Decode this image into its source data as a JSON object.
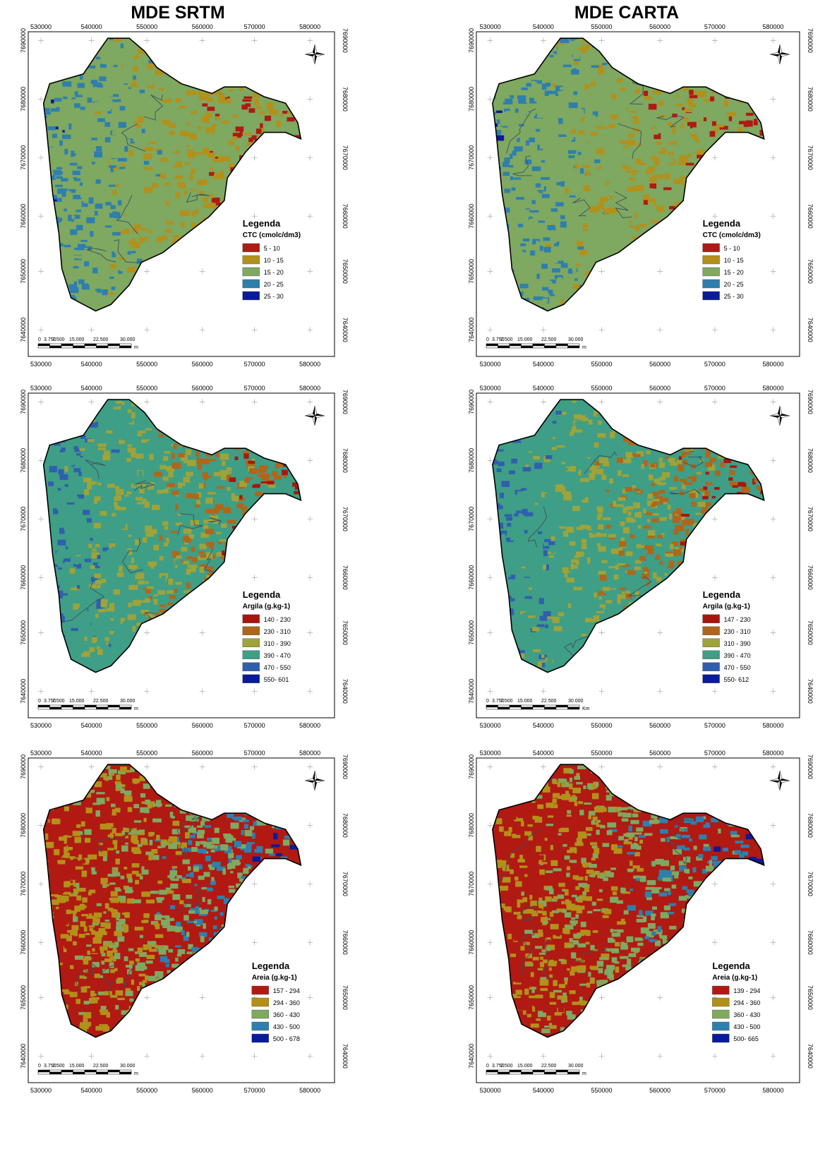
{
  "titles": {
    "left": "MDE SRTM",
    "right": "MDE CARTA"
  },
  "x_ticks": [
    "530000",
    "540000",
    "550000",
    "560000",
    "570000",
    "580000"
  ],
  "y_ticks": [
    "7690000",
    "7680000",
    "7670000",
    "7660000",
    "7650000",
    "7640000"
  ],
  "scalebar": {
    "labels": [
      "0",
      "3.750",
      "7.500",
      "15.000",
      "22.500",
      "30.000"
    ]
  },
  "legend_heading": "Legenda",
  "north_arrow": "compass-rose-icon",
  "maps": [
    {
      "id": "srtm-ctc",
      "unit": "m",
      "legend_title": "CTC (cmolc/dm3)",
      "classes": [
        {
          "label": "5 - 10",
          "color": "#b01a12"
        },
        {
          "label": "10 - 15",
          "color": "#b3901a"
        },
        {
          "label": "15 - 20",
          "color": "#7fa860"
        },
        {
          "label": "20 - 25",
          "color": "#2e7fae"
        },
        {
          "label": "25 - 30",
          "color": "#0a1a9c"
        }
      ]
    },
    {
      "id": "carta-ctc",
      "unit": "m",
      "legend_title": "CTC  (cmolc/dm3)",
      "classes": [
        {
          "label": "5 - 10",
          "color": "#b01a12"
        },
        {
          "label": "10 - 15",
          "color": "#b3901a"
        },
        {
          "label": "15 - 20",
          "color": "#7fa860"
        },
        {
          "label": "20 - 25",
          "color": "#2e7fae"
        },
        {
          "label": "25 - 30",
          "color": "#0a1a9c"
        }
      ]
    },
    {
      "id": "srtm-argila",
      "unit": "m",
      "legend_title": "Argila (g.kg-1)",
      "classes": [
        {
          "label": "140 - 230",
          "color": "#a8160e"
        },
        {
          "label": "230 - 310",
          "color": "#b0661a"
        },
        {
          "label": "310 - 390",
          "color": "#9ea33a"
        },
        {
          "label": "390 - 470",
          "color": "#3f9e86"
        },
        {
          "label": "470 - 550",
          "color": "#2f5fae"
        },
        {
          "label": "550- 601",
          "color": "#0a1a9c"
        }
      ]
    },
    {
      "id": "carta-argila",
      "unit": "Km",
      "legend_title": "Argila (g.kg-1)",
      "classes": [
        {
          "label": "147 - 230",
          "color": "#a8160e"
        },
        {
          "label": "230 - 310",
          "color": "#b0661a"
        },
        {
          "label": "310 - 390",
          "color": "#9ea33a"
        },
        {
          "label": "390 - 470",
          "color": "#3f9e86"
        },
        {
          "label": "470 - 550",
          "color": "#2f5fae"
        },
        {
          "label": "550- 612",
          "color": "#0a1a9c"
        }
      ]
    },
    {
      "id": "srtm-areia",
      "unit": "m",
      "legend_title": "Areia (g.kg-1)",
      "classes": [
        {
          "label": "157 - 294",
          "color": "#b01a12"
        },
        {
          "label": "294 - 360",
          "color": "#b3901a"
        },
        {
          "label": "360 - 430",
          "color": "#7fa860"
        },
        {
          "label": "430 - 500",
          "color": "#2e7fae"
        },
        {
          "label": "500 - 678",
          "color": "#0a1a9c"
        }
      ]
    },
    {
      "id": "carta-areia",
      "unit": "m",
      "legend_title": "Areia (g.kg-1)",
      "classes": [
        {
          "label": "139 - 294",
          "color": "#b01a12"
        },
        {
          "label": "294 - 360",
          "color": "#b3901a"
        },
        {
          "label": "360 - 430",
          "color": "#7fa860"
        },
        {
          "label": "430 - 500",
          "color": "#2e7fae"
        },
        {
          "label": "500- 665",
          "color": "#0a1a9c"
        }
      ]
    }
  ]
}
